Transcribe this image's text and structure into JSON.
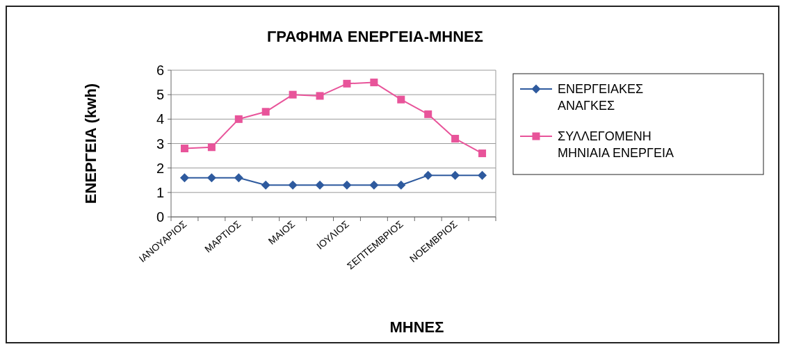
{
  "chart_data": {
    "type": "line",
    "title": "ΓΡΑΦΗΜΑ ΕΝΕΡΓΕΙΑ-ΜΗΝΕΣ",
    "xlabel": "ΜΗΝΕΣ",
    "ylabel": "ΕΝΕΡΓΕΙΑ (kwh)",
    "categories": [
      "ΙΑΝΟΥΑΡΙΟΣ",
      null,
      "ΜΑΡΤΙΟΣ",
      null,
      "ΜΑΙΟΣ",
      null,
      "ΙΟΥΛΙΟΣ",
      null,
      "ΣΕΠΤΕΜΒΡΙΟΣ",
      null,
      "ΝΟΕΜΒΡΙΟΣ",
      null
    ],
    "series": [
      {
        "name": "ΕΝΕΡΓΕΙΑΚΕΣ ΑΝΑΓΚΕΣ",
        "color": "#2e5a9e",
        "marker": "diamond",
        "values": [
          1.6,
          1.6,
          1.6,
          1.3,
          1.3,
          1.3,
          1.3,
          1.3,
          1.3,
          1.7,
          1.7,
          1.7
        ]
      },
      {
        "name": "ΣΥΛΛΕΓΟΜΕΝΗ ΜΗΝΙΑΙΑ ΕΝΕΡΓΕΙΑ",
        "color": "#e8549a",
        "marker": "square",
        "values": [
          2.8,
          2.85,
          4.0,
          4.3,
          5.0,
          4.95,
          5.45,
          5.5,
          4.8,
          4.2,
          3.2,
          2.6
        ]
      }
    ],
    "ylim": [
      0,
      6
    ],
    "yticks": [
      0,
      1,
      2,
      3,
      4,
      5,
      6
    ],
    "grid": "y",
    "legend": "right"
  }
}
